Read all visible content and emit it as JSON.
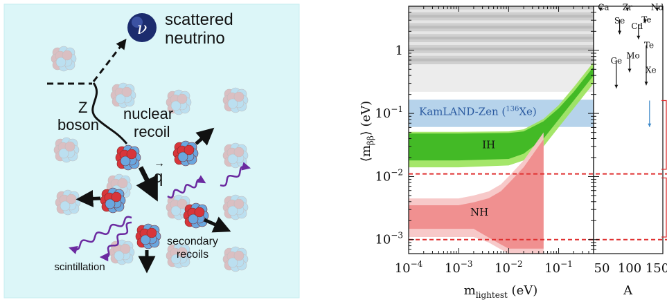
{
  "left_panel": {
    "scattered_line1": "scattered",
    "scattered_line2": "neutrino",
    "nu_symbol": "ν",
    "z_line1": "Z",
    "z_line2": "boson",
    "recoil_line1": "nuclear",
    "recoil_line2": "recoil",
    "q_symbol": "q",
    "secondary_line1": "secondary",
    "secondary_line2": "recoils",
    "scintillation": "scintillation",
    "colors": {
      "background": "#dcf6f8",
      "proton": "#d8353a",
      "neutron": "#6aa7df",
      "photon": "#6b2aa0",
      "arrow": "#111111"
    },
    "icons": [
      "neutrino-ball-icon",
      "nucleus-icon",
      "photon-wave-icon",
      "arrow-icon"
    ]
  },
  "chart_data": [
    {
      "type": "area",
      "ylabel_pre": "⟨m",
      "ylabel_sub": "ββ",
      "ylabel_post": "⟩ (eV)",
      "xlabel_main": "m",
      "xlabel_sub": "lightest",
      "xlabel_post": " (eV)",
      "x_scale": "log",
      "y_scale": "log",
      "xlim": [
        0.0001,
        0.5
      ],
      "ylim": [
        0.0006,
        5
      ],
      "xticks": [
        {
          "value": 0.0001,
          "base": "10",
          "exp": "−4"
        },
        {
          "value": 0.001,
          "base": "10",
          "exp": "−3"
        },
        {
          "value": 0.01,
          "base": "10",
          "exp": "−2"
        },
        {
          "value": 0.1,
          "base": "10",
          "exp": "−1"
        }
      ],
      "yticks": [
        {
          "value": 0.001,
          "base": "10",
          "exp": "−3"
        },
        {
          "value": 0.01,
          "base": "10",
          "exp": "−2"
        },
        {
          "value": 0.1,
          "base": "10",
          "exp": "−1"
        },
        {
          "value": 1,
          "base": "1",
          "exp": ""
        }
      ],
      "kamland_label": "KamLAND-Zen (",
      "kamland_isotope_mass": "136",
      "kamland_isotope": "Xe)",
      "kamland_band": [
        0.061,
        0.165
      ],
      "ih_label": "IH",
      "nh_label": "NH",
      "dashed_lines_y": [
        0.011,
        0.001
      ],
      "colors": {
        "kamland": "#a9cbe8",
        "ih_dark": "#38b51f",
        "ih_light": "#9be35a",
        "nh_dark": "#ef8d8d",
        "nh_light": "#f7c6c6",
        "excluded": "#cfcfcf",
        "dashed": "#e03030"
      },
      "ih_band": {
        "x": [
          0.0001,
          0.001,
          0.01,
          0.02,
          0.05,
          0.1,
          0.2,
          0.5
        ],
        "y_light_lo": [
          0.014,
          0.014,
          0.015,
          0.018,
          0.03,
          0.06,
          0.12,
          0.3
        ],
        "y_dark_lo": [
          0.018,
          0.018,
          0.019,
          0.023,
          0.04,
          0.08,
          0.16,
          0.4
        ],
        "y_dark_hi": [
          0.048,
          0.048,
          0.049,
          0.052,
          0.075,
          0.12,
          0.22,
          0.55
        ],
        "y_light_hi": [
          0.051,
          0.051,
          0.052,
          0.056,
          0.082,
          0.135,
          0.26,
          0.65
        ]
      },
      "nh_band": {
        "x": [
          0.0001,
          0.001,
          0.002,
          0.004,
          0.007,
          0.01,
          0.02,
          0.05
        ],
        "y_hi": [
          0.0045,
          0.0045,
          0.005,
          0.0058,
          0.0075,
          0.01,
          0.018,
          0.05
        ],
        "y_lo": [
          0.0011,
          0.0011,
          0.0011,
          0.0009,
          0.0007,
          0.0006,
          0.0006,
          0.0006
        ]
      }
    },
    {
      "type": "scatter",
      "xlabel": "A",
      "xticks": [
        50,
        100,
        150
      ],
      "xlim": [
        35,
        160
      ],
      "ylim": [
        0.0006,
        5
      ],
      "elements": [
        {
          "name": "Ca",
          "A": 48,
          "top": 4.6,
          "bottom": 4.2
        },
        {
          "name": "Zr",
          "A": 96,
          "top": 4.6,
          "bottom": 4.2
        },
        {
          "name": "Nd",
          "A": 150,
          "top": 4.6,
          "bottom": 4.2
        },
        {
          "name": "Se",
          "A": 82,
          "top": 3.1,
          "bottom": 1.8
        },
        {
          "name": "Te",
          "A": 128,
          "top": 3.2,
          "bottom": 2.7
        },
        {
          "name": "Cd",
          "A": 116,
          "top": 2.6,
          "bottom": 1.5
        },
        {
          "name": "Te",
          "A": 130,
          "top": 1.2,
          "bottom": 0.28
        },
        {
          "name": "Mo",
          "A": 100,
          "top": 0.85,
          "bottom": 0.45
        },
        {
          "name": "Ge",
          "A": 76,
          "top": 0.7,
          "bottom": 0.25
        },
        {
          "name": "Xe",
          "A": 136,
          "top": 0.16,
          "bottom": 0.061
        }
      ]
    }
  ]
}
